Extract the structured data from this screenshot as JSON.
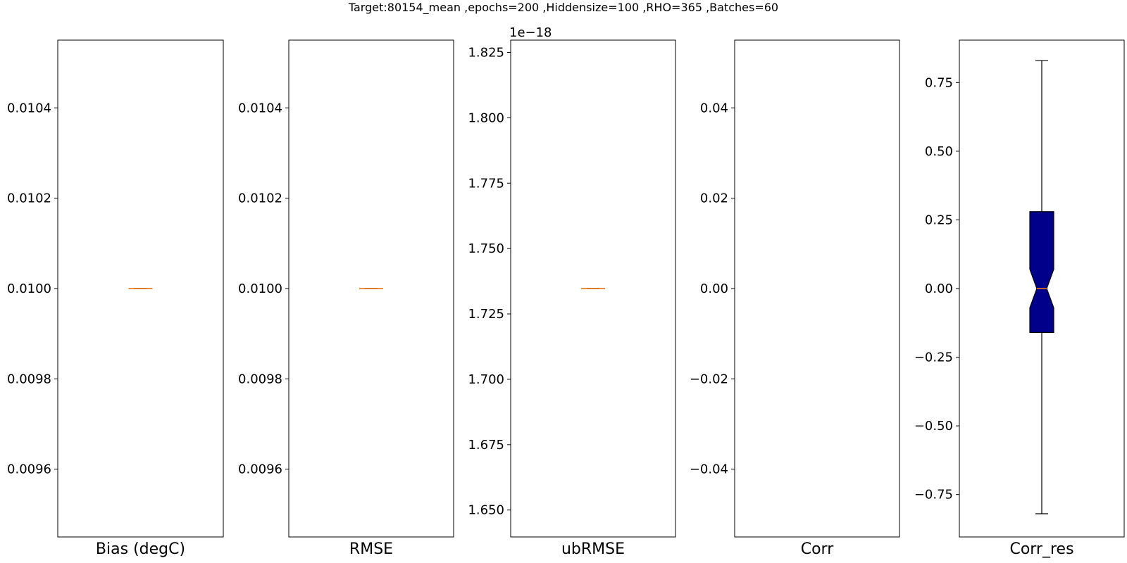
{
  "suptitle": "Target:80154_mean ,epochs=200 ,Hiddensize=100 ,RHO=365 ,Batches=60",
  "colors": {
    "box_fill": "#00008B",
    "median": "#FF7F0E",
    "axes": "#000000"
  },
  "chart_data": [
    {
      "type": "box",
      "xlabel": "Bias (degC)",
      "ylim": [
        0.00945,
        0.01055
      ],
      "yticks": [
        0.0096,
        0.0098,
        0.01,
        0.0102,
        0.0104
      ],
      "yticklabels": [
        "0.0096",
        "0.0098",
        "0.0100",
        "0.0102",
        "0.0104"
      ],
      "offset_label": "",
      "box": {
        "whislo": 0.01,
        "q1": 0.01,
        "med": 0.01,
        "q3": 0.01,
        "whishi": 0.01,
        "notch_lo": 0.01,
        "notch_hi": 0.01
      }
    },
    {
      "type": "box",
      "xlabel": "RMSE",
      "ylim": [
        0.00945,
        0.01055
      ],
      "yticks": [
        0.0096,
        0.0098,
        0.01,
        0.0102,
        0.0104
      ],
      "yticklabels": [
        "0.0096",
        "0.0098",
        "0.0100",
        "0.0102",
        "0.0104"
      ],
      "offset_label": "",
      "box": {
        "whislo": 0.01,
        "q1": 0.01,
        "med": 0.01,
        "q3": 0.01,
        "whishi": 0.01,
        "notch_lo": 0.01,
        "notch_hi": 0.01
      }
    },
    {
      "type": "box",
      "xlabel": "ubRMSE",
      "ylim": [
        1.6397,
        1.8297
      ],
      "yticks": [
        1.65,
        1.675,
        1.7,
        1.725,
        1.75,
        1.775,
        1.8,
        1.825
      ],
      "yticklabels": [
        "1.650",
        "1.675",
        "1.700",
        "1.725",
        "1.750",
        "1.775",
        "1.800",
        "1.825"
      ],
      "offset_label": "1e−18",
      "box": {
        "whislo": 1.7347,
        "q1": 1.7347,
        "med": 1.7347,
        "q3": 1.7347,
        "whishi": 1.7347,
        "notch_lo": 1.7347,
        "notch_hi": 1.7347
      }
    },
    {
      "type": "box",
      "xlabel": "Corr",
      "ylim": [
        -0.055,
        0.055
      ],
      "yticks": [
        -0.04,
        -0.02,
        0.0,
        0.02,
        0.04
      ],
      "yticklabels": [
        "−0.04",
        "−0.02",
        "0.00",
        "0.02",
        "0.04"
      ],
      "offset_label": "",
      "box": null
    },
    {
      "type": "box",
      "xlabel": "Corr_res",
      "ylim": [
        -0.9045,
        0.9045
      ],
      "yticks": [
        -0.75,
        -0.5,
        -0.25,
        0.0,
        0.25,
        0.5,
        0.75
      ],
      "yticklabels": [
        "−0.75",
        "−0.50",
        "−0.25",
        "0.00",
        "0.25",
        "0.50",
        "0.75"
      ],
      "offset_label": "",
      "box": {
        "whislo": -0.82,
        "q1": -0.16,
        "med": 0.0,
        "q3": 0.28,
        "whishi": 0.83,
        "notch_lo": -0.07,
        "notch_hi": 0.07
      }
    }
  ]
}
